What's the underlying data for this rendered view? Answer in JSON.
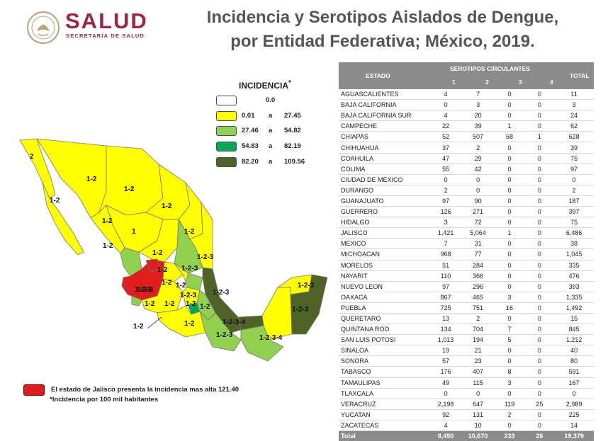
{
  "header": {
    "brand": "SALUD",
    "brand_sub": "SECRETARÍA DE SALUD",
    "title_line1": "Incidencia y Serotipos Aislados de Dengue,",
    "title_line2": "por Entidad Federativa; México, 2019."
  },
  "legend": {
    "title": "INCIDENCIA",
    "title_mark": "*",
    "rows": [
      {
        "color": "#ffffff",
        "value": "0.0"
      },
      {
        "color": "#ffff00",
        "lo": "0.01",
        "sep": "a",
        "hi": "27.45"
      },
      {
        "color": "#92d050",
        "lo": "27.46",
        "sep": "a",
        "hi": "54.82"
      },
      {
        "color": "#00a651",
        "lo": "54.83",
        "sep": "a",
        "hi": "82.19"
      },
      {
        "color": "#4f6228",
        "lo": "82.20",
        "sep": "a",
        "hi": "109.56"
      }
    ]
  },
  "map_labels": [
    "2",
    "1-2",
    "1-2",
    "1-2",
    "1-2",
    "1",
    "1-2",
    "1-2",
    "1-2",
    "1-2-3",
    "1-2-3",
    "1-2-3",
    "1-2",
    "1-2",
    "1-2-3",
    "1-2",
    "1-2",
    "1-2-3",
    "1-2-3",
    "1-2-3-4",
    "1-2-3",
    "1-2-3-4",
    "1-2-3",
    "1-2-3",
    "1-2",
    "1-2",
    "1-2",
    "1-2",
    "1-2",
    "1-2"
  ],
  "notes": {
    "jalisco": "El estado de Jalisco presenta la incidencia mas alta  121.40",
    "per100k": "*Incidencia por 100 mil habitantes"
  },
  "table": {
    "header_estado": "ESTADO",
    "header_serotipos": "SEROTIPOS CIRCULANTES",
    "header_total": "TOTAL",
    "serotipos": [
      "1",
      "2",
      "3",
      "4"
    ],
    "rows": [
      [
        "AGUASCALIENTES",
        "4",
        "7",
        "0",
        "0",
        "11"
      ],
      [
        "BAJA CALIFORNIA",
        "0",
        "3",
        "0",
        "0",
        "3"
      ],
      [
        "BAJA CALIFORNIA SUR",
        "4",
        "20",
        "0",
        "0",
        "24"
      ],
      [
        "CAMPECHE",
        "22",
        "39",
        "1",
        "0",
        "62"
      ],
      [
        "CHIAPAS",
        "52",
        "507",
        "68",
        "1",
        "628"
      ],
      [
        "CHIHUAHUA",
        "37",
        "2",
        "0",
        "0",
        "39"
      ],
      [
        "COAHUILA",
        "47",
        "29",
        "0",
        "0",
        "76"
      ],
      [
        "COLIMA",
        "55",
        "42",
        "0",
        "0",
        "97"
      ],
      [
        "CIUDAD DE MEXICO",
        "0",
        "0",
        "0",
        "0",
        "0"
      ],
      [
        "DURANGO",
        "2",
        "0",
        "0",
        "0",
        "2"
      ],
      [
        "GUANAJUATO",
        "97",
        "90",
        "0",
        "0",
        "187"
      ],
      [
        "GUERRERO",
        "126",
        "271",
        "0",
        "0",
        "397"
      ],
      [
        "HIDALGO",
        "3",
        "72",
        "0",
        "0",
        "75"
      ],
      [
        "JALISCO",
        "1,421",
        "5,064",
        "1",
        "0",
        "6,486"
      ],
      [
        "MEXICO",
        "7",
        "31",
        "0",
        "0",
        "38"
      ],
      [
        "MICHOACAN",
        "968",
        "77",
        "0",
        "0",
        "1,045"
      ],
      [
        "MORELOS",
        "51",
        "284",
        "0",
        "0",
        "335"
      ],
      [
        "NAYARIT",
        "110",
        "366",
        "0",
        "0",
        "476"
      ],
      [
        "NUEVO LEON",
        "97",
        "296",
        "0",
        "0",
        "393"
      ],
      [
        "OAXACA",
        "867",
        "465",
        "3",
        "0",
        "1,335"
      ],
      [
        "PUEBLA",
        "725",
        "751",
        "16",
        "0",
        "1,492"
      ],
      [
        "QUERETARO",
        "13",
        "2",
        "0",
        "0",
        "15"
      ],
      [
        "QUINTANA ROO",
        "134",
        "704",
        "7",
        "0",
        "845"
      ],
      [
        "SAN LUIS POTOSI",
        "1,013",
        "194",
        "5",
        "0",
        "1,212"
      ],
      [
        "SINALOA",
        "19",
        "21",
        "0",
        "0",
        "40"
      ],
      [
        "SONORA",
        "57",
        "23",
        "0",
        "0",
        "80"
      ],
      [
        "TABASCO",
        "176",
        "407",
        "8",
        "0",
        "591"
      ],
      [
        "TAMAULIPAS",
        "49",
        "115",
        "3",
        "0",
        "167"
      ],
      [
        "TLAXCALA",
        "0",
        "0",
        "0",
        "0",
        "0"
      ],
      [
        "VERACRUZ",
        "2,198",
        "647",
        "119",
        "25",
        "2,989"
      ],
      [
        "YUCATAN",
        "92",
        "131",
        "2",
        "0",
        "225"
      ],
      [
        "ZACATECAS",
        "4",
        "10",
        "0",
        "0",
        "14"
      ]
    ],
    "total": [
      "Total",
      "8,450",
      "10,670",
      "233",
      "26",
      "19,379"
    ]
  }
}
